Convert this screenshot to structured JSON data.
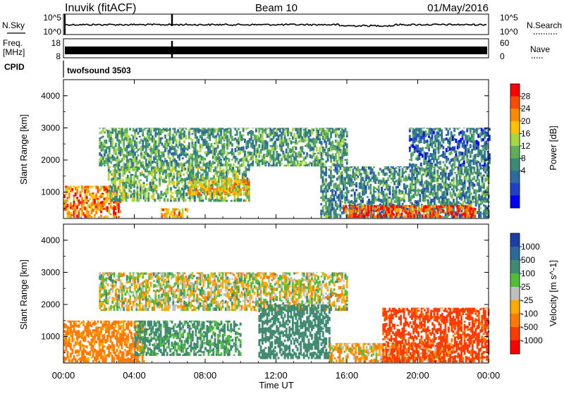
{
  "header": {
    "station": "Inuvik (fitACF)",
    "beam": "Beam 10",
    "date": "01/May/2016"
  },
  "nsky_panel": {
    "label_left": "N.Sky",
    "label_right": "N.Search",
    "ticks_left": [
      "10^5",
      "10^0"
    ],
    "ticks_right": [
      "10^5",
      "10^0"
    ]
  },
  "freq_panel": {
    "label_left_1": "Freq.",
    "label_left_2": "[MHz]",
    "label_right": "Nave",
    "ticks_left": [
      "18",
      "8"
    ],
    "ticks_right": [
      "60",
      "0"
    ]
  },
  "cpid_panel": {
    "label": "CPID",
    "program": "twofsound 3503"
  },
  "axes": {
    "ylabel": "Slant Range [km]",
    "xlabel": "Time UT",
    "yticks": [
      "4000",
      "3000",
      "2000",
      "1000"
    ],
    "xticks": [
      "00:00",
      "04:00",
      "08:00",
      "12:00",
      "16:00",
      "20:00",
      "00:00"
    ]
  },
  "power_colorbar": {
    "label": "Power [dB]",
    "ticks": [
      "28",
      "24",
      "20",
      "16",
      "12",
      "8",
      "4"
    ],
    "colors": [
      "#ff0000",
      "#ff4a00",
      "#ff8a00",
      "#ffc200",
      "#a6d940",
      "#5fae5a",
      "#3a8a74",
      "#2e6aa0",
      "#1f40c8",
      "#0000ff"
    ]
  },
  "velocity_colorbar": {
    "label": "Velocity [m s^-1]",
    "ticks": [
      "1000",
      "500",
      "100",
      "25",
      "-25",
      "-100",
      "-500",
      "-1000"
    ],
    "colors": [
      "#1a3fa8",
      "#2a6a9a",
      "#3f8a70",
      "#4fbf3a",
      "#bfbfbf",
      "#ffaa00",
      "#ff7a00",
      "#ff3a00",
      "#ff0000"
    ]
  },
  "chart_data": [
    {
      "type": "heatmap",
      "title": "Power",
      "x_range": [
        "00:00",
        "24:00"
      ],
      "y_range_km": [
        180,
        4500
      ],
      "quantity": "Power [dB]",
      "regions": [
        {
          "t_start": 0.0,
          "t_end": 3.2,
          "r_start": 200,
          "r_end": 1200,
          "value_dB": 26
        },
        {
          "t_start": 2.5,
          "t_end": 10.5,
          "r_start": 700,
          "r_end": 1800,
          "value_dB": 14
        },
        {
          "t_start": 2.0,
          "t_end": 16.0,
          "r_start": 1800,
          "r_end": 3000,
          "value_dB": 12
        },
        {
          "t_start": 5.5,
          "t_end": 7.0,
          "r_start": 200,
          "r_end": 500,
          "value_dB": 24
        },
        {
          "t_start": 7.0,
          "t_end": 10.5,
          "r_start": 900,
          "r_end": 1400,
          "value_dB": 22
        },
        {
          "t_start": 14.5,
          "t_end": 24.0,
          "r_start": 200,
          "r_end": 1800,
          "value_dB": 10
        },
        {
          "t_start": 15.8,
          "t_end": 23.2,
          "r_start": 200,
          "r_end": 600,
          "value_dB": 30
        },
        {
          "t_start": 19.5,
          "t_end": 24.0,
          "r_start": 1800,
          "r_end": 3000,
          "value_dB": 8
        }
      ]
    },
    {
      "type": "heatmap",
      "title": "Velocity",
      "x_range": [
        "00:00",
        "24:00"
      ],
      "y_range_km": [
        180,
        4500
      ],
      "quantity": "Velocity [m s^-1]",
      "regions": [
        {
          "t_start": 0.0,
          "t_end": 4.5,
          "r_start": 200,
          "r_end": 1500,
          "value_ms": -200
        },
        {
          "t_start": 4.0,
          "t_end": 10.0,
          "r_start": 400,
          "r_end": 1500,
          "value_ms": 150
        },
        {
          "t_start": 2.0,
          "t_end": 16.0,
          "r_start": 1800,
          "r_end": 3000,
          "value_ms": 0
        },
        {
          "t_start": 11.0,
          "t_end": 15.0,
          "r_start": 300,
          "r_end": 2000,
          "value_ms": 300
        },
        {
          "t_start": 15.0,
          "t_end": 22.0,
          "r_start": 200,
          "r_end": 800,
          "value_ms": -80
        },
        {
          "t_start": 18.0,
          "t_end": 24.0,
          "r_start": 200,
          "r_end": 1900,
          "value_ms": -600
        }
      ]
    }
  ]
}
